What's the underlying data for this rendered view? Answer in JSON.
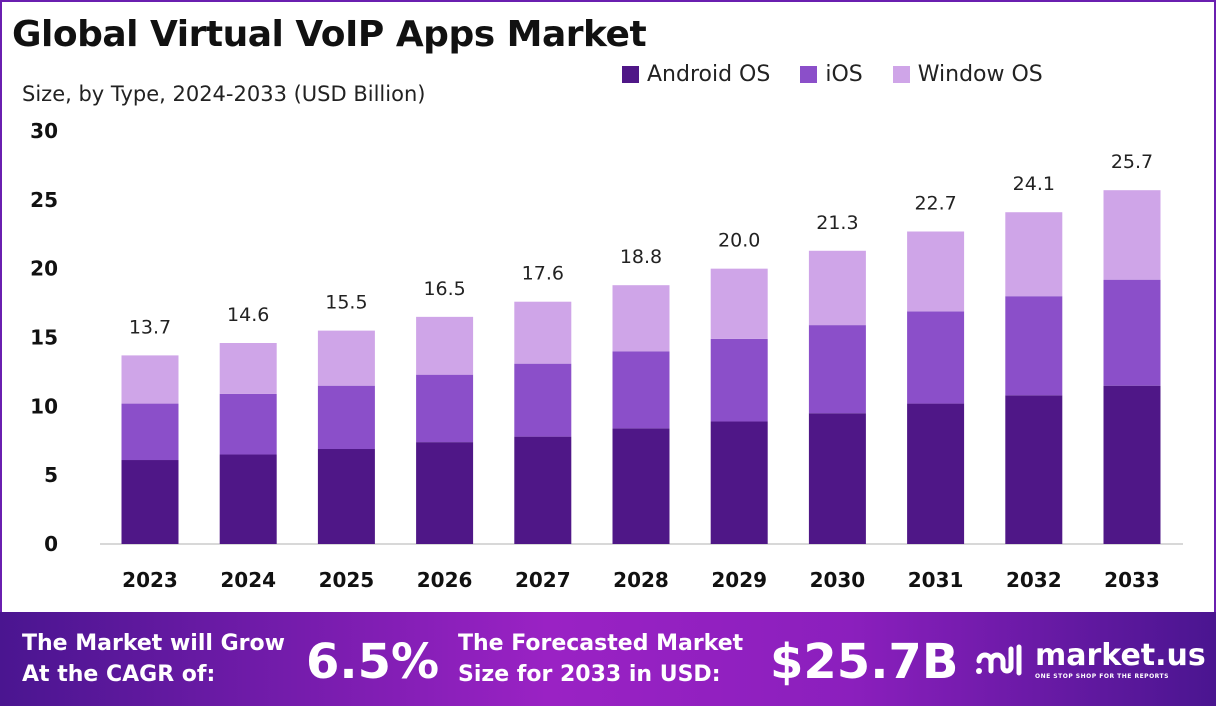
{
  "chart_data": {
    "type": "bar",
    "stacked": true,
    "title": "Global Virtual VoIP Apps Market",
    "subtitle": "Size, by Type, 2024-2033 (USD Billion)",
    "xlabel": "",
    "ylabel": "",
    "ylim": [
      0,
      30
    ],
    "yticks": [
      "0",
      "5",
      "10",
      "15",
      "20",
      "25",
      "30"
    ],
    "grid": false,
    "legend_position": "top-right",
    "categories": [
      "2023",
      "2024",
      "2025",
      "2026",
      "2027",
      "2028",
      "2029",
      "2030",
      "2031",
      "2032",
      "2033"
    ],
    "series": [
      {
        "name": "Android OS",
        "color": "#4f1787",
        "values": [
          6.1,
          6.5,
          6.9,
          7.4,
          7.8,
          8.4,
          8.9,
          9.5,
          10.2,
          10.8,
          11.5
        ]
      },
      {
        "name": "iOS",
        "color": "#8b4fc9",
        "values": [
          4.1,
          4.4,
          4.6,
          4.9,
          5.3,
          5.6,
          6.0,
          6.4,
          6.7,
          7.2,
          7.7
        ]
      },
      {
        "name": "Window OS",
        "color": "#cfa5e8",
        "values": [
          3.5,
          3.7,
          4.0,
          4.2,
          4.5,
          4.8,
          5.1,
          5.4,
          5.8,
          6.1,
          6.5
        ]
      }
    ],
    "totals": [
      "13.7",
      "14.6",
      "15.5",
      "16.5",
      "17.6",
      "18.8",
      "20.0",
      "21.3",
      "22.7",
      "24.1",
      "25.7"
    ]
  },
  "footer": {
    "cagr_label_1": "The Market will Grow",
    "cagr_label_2": "At the CAGR of:",
    "cagr_value": "6.5%",
    "forecast_label_1": "The Forecasted Market",
    "forecast_label_2": "Size for 2033 in USD:",
    "forecast_value": "$25.7B",
    "brand": "market.us",
    "tagline": "ONE STOP SHOP FOR THE REPORTS"
  }
}
